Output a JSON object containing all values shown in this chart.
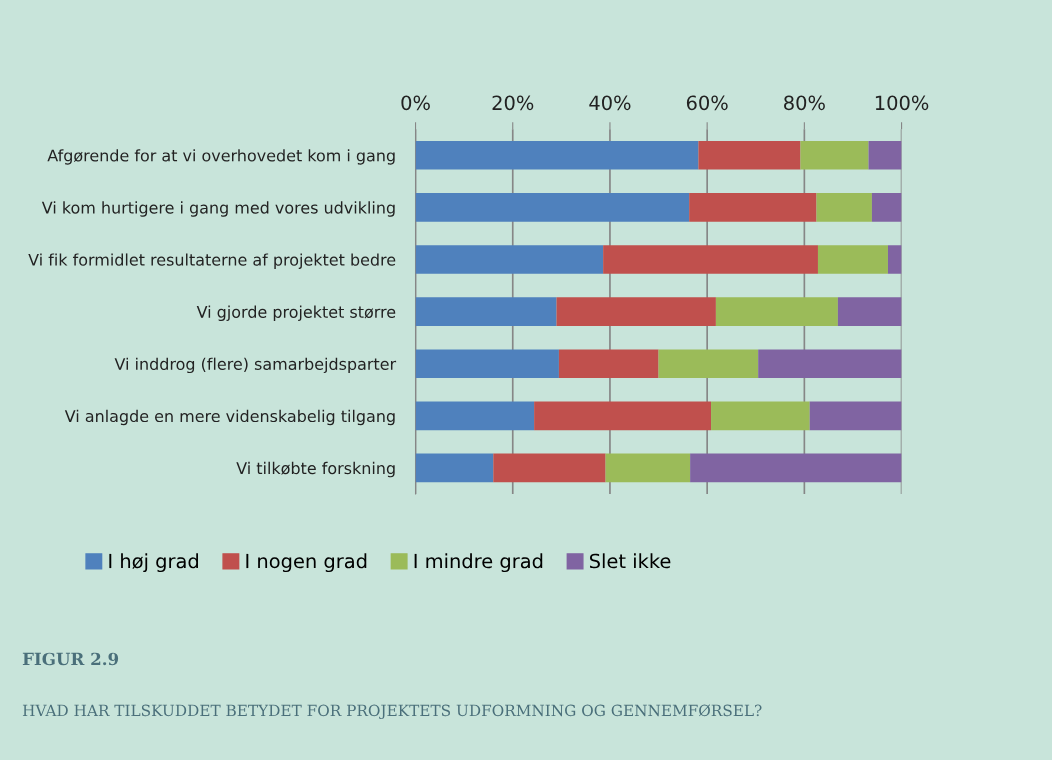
{
  "chart_data": {
    "type": "bar",
    "orientation": "horizontal",
    "stacked": true,
    "categories": [
      "Afgørende for at vi overhovedet kom i gang",
      "Vi kom hurtigere i gang med vores udvikling",
      "Vi fik formidlet resultaterne af projektet bedre",
      "Vi gjorde projektet større",
      "Vi inddrog (flere) samarbejdsparter",
      "Vi anlagde en mere videnskabelig tilgang",
      "Vi tilkøbte forskning"
    ],
    "series": [
      {
        "name": "I høj grad",
        "color": "#4f81bd",
        "values": [
          58.2,
          56.3,
          38.6,
          29.0,
          29.5,
          24.4,
          16.0
        ]
      },
      {
        "name": "I nogen grad",
        "color": "#c0504d",
        "values": [
          21.0,
          26.2,
          44.2,
          32.8,
          20.5,
          36.4,
          23.1
        ]
      },
      {
        "name": "I mindre grad",
        "color": "#9bbb59",
        "values": [
          14.0,
          11.4,
          14.4,
          25.1,
          20.5,
          20.3,
          17.4
        ]
      },
      {
        "name": "Slet ikke",
        "color": "#8064a2",
        "values": [
          6.8,
          6.1,
          2.8,
          13.1,
          29.5,
          18.9,
          43.5
        ]
      }
    ],
    "xlim": [
      0,
      100
    ],
    "xticks": [
      {
        "value": 0,
        "label": "0%"
      },
      {
        "value": 20,
        "label": "20%"
      },
      {
        "value": 40,
        "label": "40%"
      },
      {
        "value": 60,
        "label": "60%"
      },
      {
        "value": 80,
        "label": "80%"
      },
      {
        "value": 100,
        "label": "100%"
      }
    ],
    "grid": "x",
    "legend": "bottom",
    "annotations": [
      "FIGUR 2.9",
      "HVAD HAR TILSKUDDET BETYDET FOR PROJEKTETS UDFORMNING OG GENNEMFØRSEL?"
    ]
  }
}
